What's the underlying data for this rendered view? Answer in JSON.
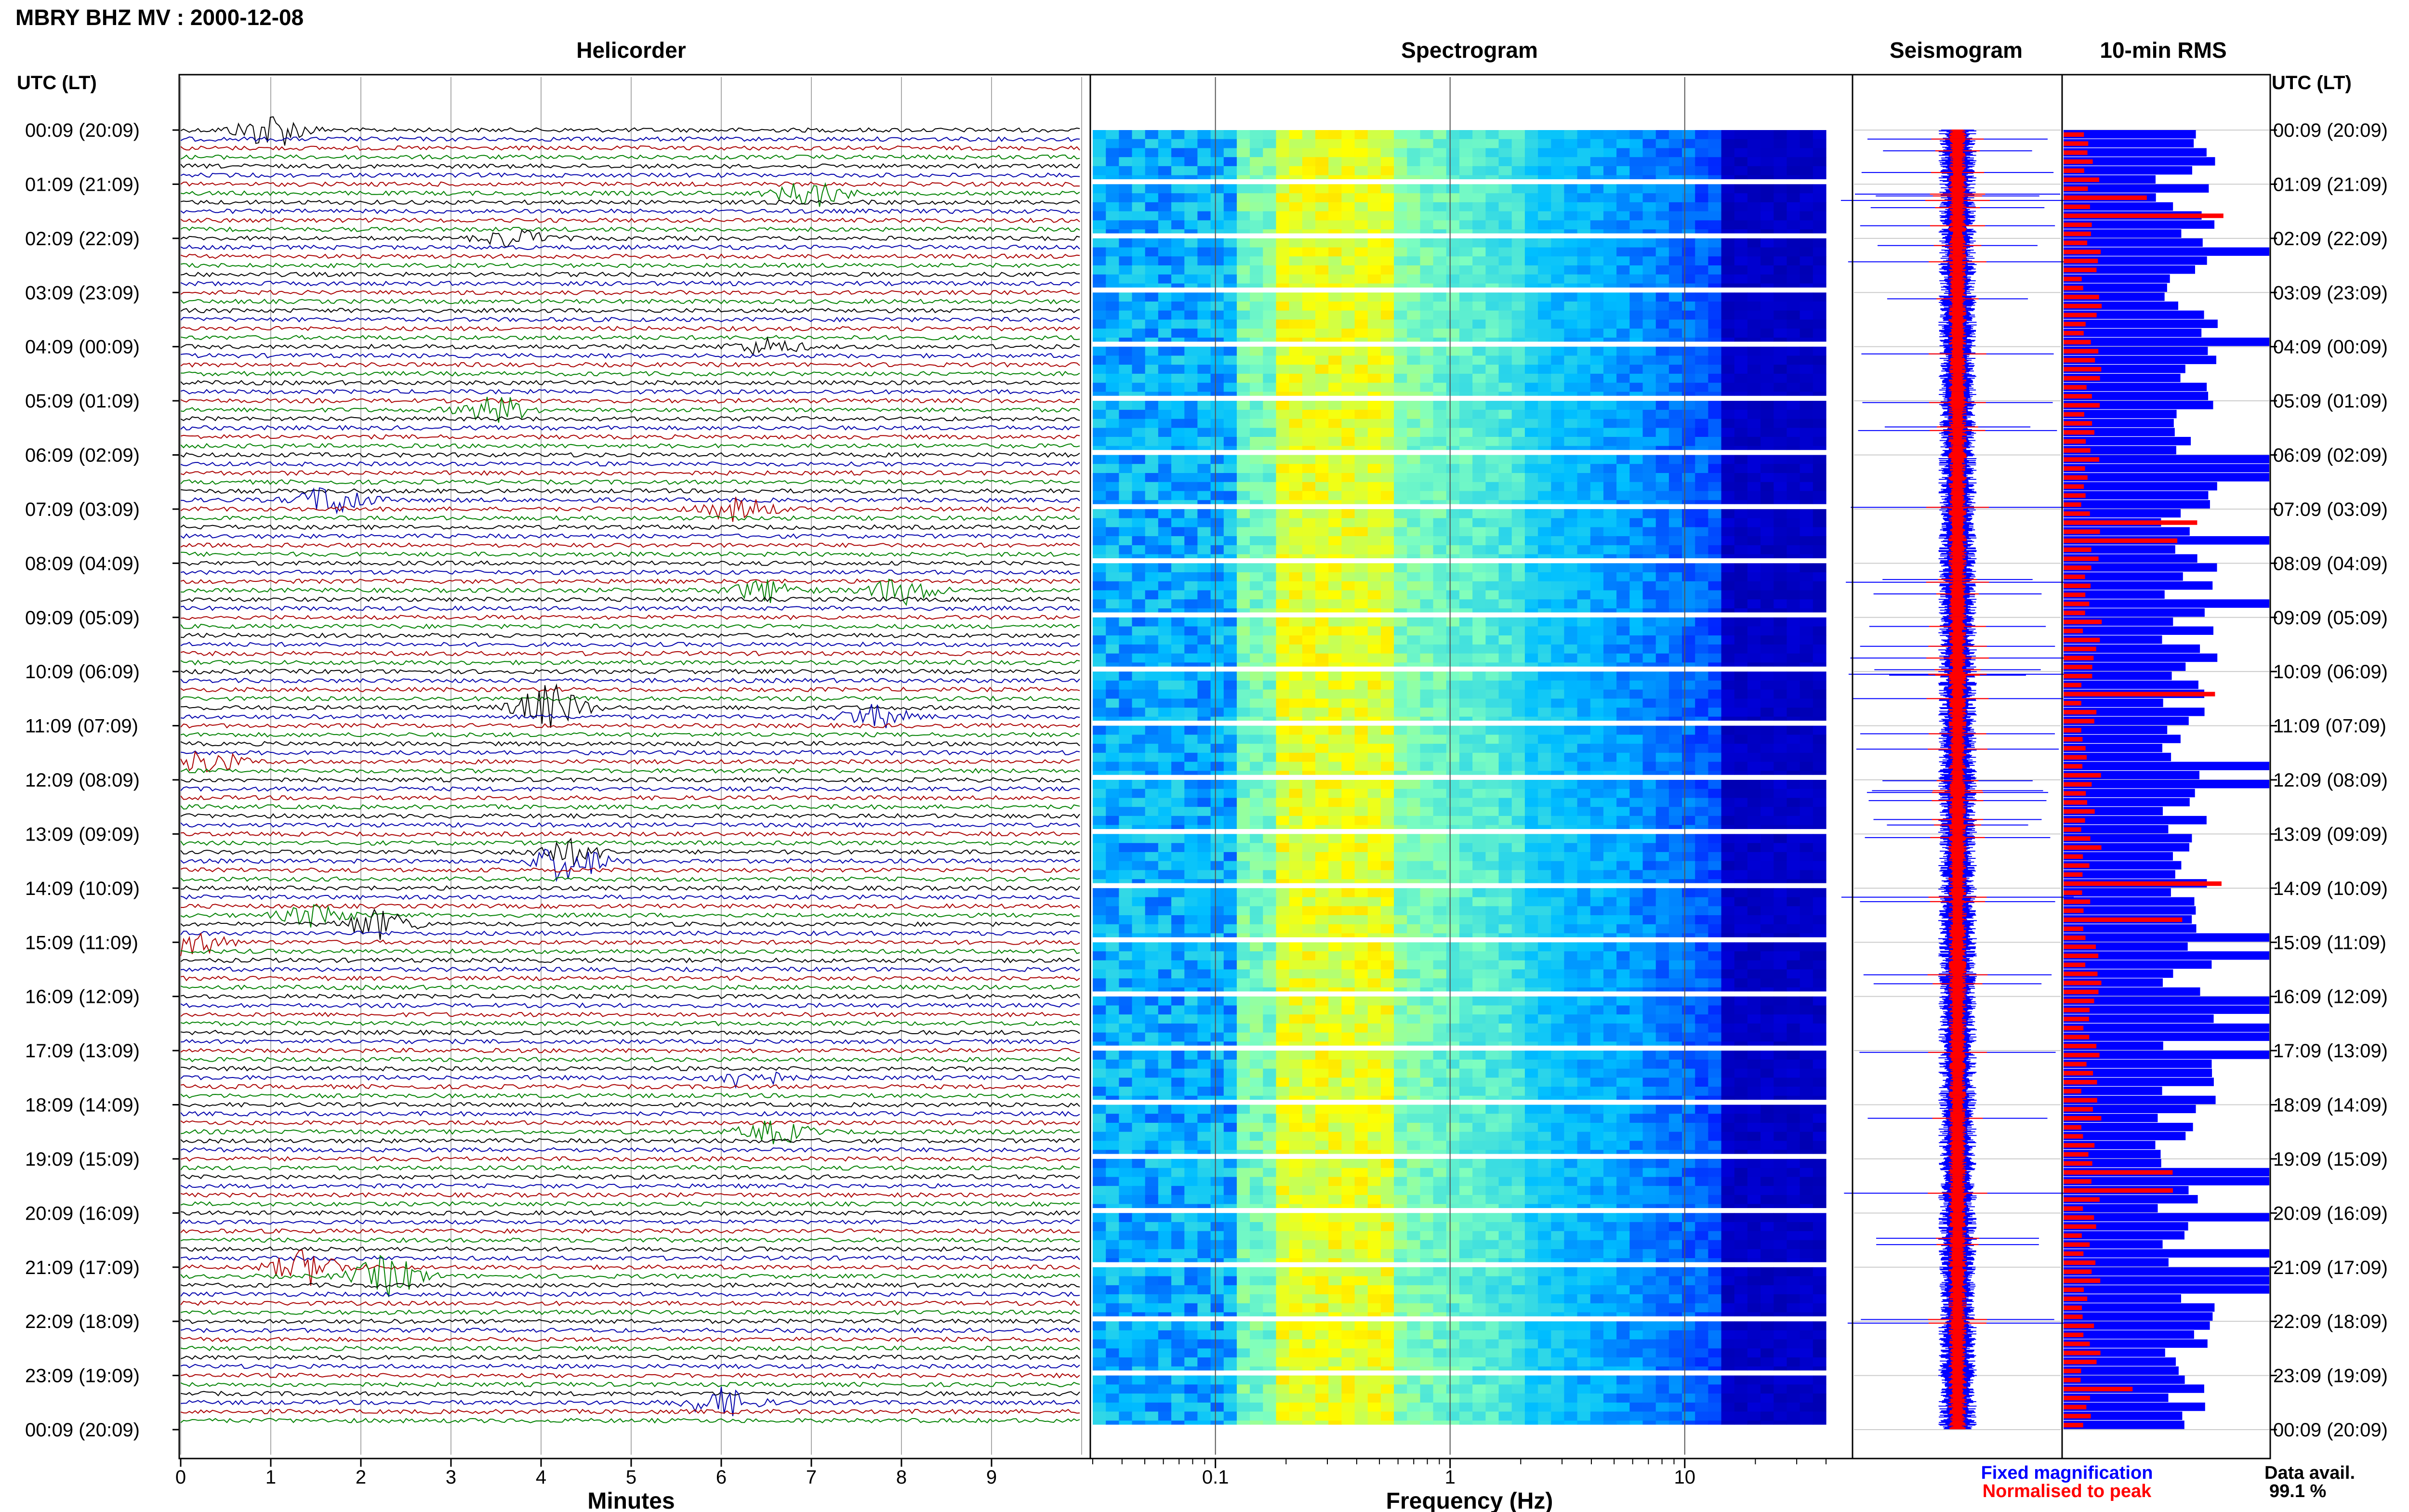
{
  "title": "MBRY BHZ MV : 2000-12-08",
  "panels": {
    "helicorder": "Helicorder",
    "spectrogram": "Spectrogram",
    "seismogram": "Seismogram",
    "rms": "10-min RMS"
  },
  "time_axis_label": "UTC (LT)",
  "time_labels": [
    "00:09 (20:09)",
    "01:09 (21:09)",
    "02:09 (22:09)",
    "03:09 (23:09)",
    "04:09 (00:09)",
    "05:09 (01:09)",
    "06:09 (02:09)",
    "07:09 (03:09)",
    "08:09 (04:09)",
    "09:09 (05:09)",
    "10:09 (06:09)",
    "11:09 (07:09)",
    "12:09 (08:09)",
    "13:09 (09:09)",
    "14:09 (10:09)",
    "15:09 (11:09)",
    "16:09 (12:09)",
    "17:09 (13:09)",
    "18:09 (14:09)",
    "19:09 (15:09)",
    "20:09 (16:09)",
    "21:09 (17:09)",
    "22:09 (18:09)",
    "23:09 (19:09)",
    "00:09 (20:09)"
  ],
  "helicorder_xlabel": "Minutes",
  "helicorder_ticks": [
    "0",
    "1",
    "2",
    "3",
    "4",
    "5",
    "6",
    "7",
    "8",
    "9"
  ],
  "spectrogram_xlabel": "Frequency (Hz)",
  "spectrogram_ticks": [
    "0.1",
    "1",
    "10"
  ],
  "legend": {
    "fixed": "Fixed magnification",
    "normalised": "Normalised to peak",
    "fixed_color": "#0000ff",
    "normalised_color": "#ff0000"
  },
  "data_avail_label": "Data avail.",
  "data_avail_value": "99.1 %",
  "colors": {
    "trace_cycle": [
      "#000000",
      "#0000aa",
      "#aa0000",
      "#008000"
    ],
    "spectrogram_palette": [
      "#00007f",
      "#0000ff",
      "#00bfff",
      "#7fffbf",
      "#ffff00",
      "#ff8000"
    ]
  },
  "chart_data": [
    {
      "type": "line",
      "name": "Helicorder",
      "xlabel": "Minutes",
      "xlim": [
        0,
        10
      ],
      "rows": 144,
      "row_minutes": 10,
      "events": [
        {
          "row": 0,
          "minute": 1.0,
          "amp": 4.0
        },
        {
          "row": 7,
          "minute": 7.0,
          "amp": 3.0
        },
        {
          "row": 12,
          "minute": 3.7,
          "amp": 2.0
        },
        {
          "row": 24,
          "minute": 6.5,
          "amp": 1.8
        },
        {
          "row": 31,
          "minute": 3.5,
          "amp": 3.0
        },
        {
          "row": 41,
          "minute": 1.7,
          "amp": 3.5
        },
        {
          "row": 42,
          "minute": 6.2,
          "amp": 2.6
        },
        {
          "row": 51,
          "minute": 6.5,
          "amp": 2.5
        },
        {
          "row": 51,
          "minute": 8.0,
          "amp": 3.0
        },
        {
          "row": 64,
          "minute": 4.1,
          "amp": 5.0
        },
        {
          "row": 65,
          "minute": 7.7,
          "amp": 2.5
        },
        {
          "row": 70,
          "minute": 0.3,
          "amp": 2.5
        },
        {
          "row": 80,
          "minute": 4.3,
          "amp": 2.7
        },
        {
          "row": 81,
          "minute": 4.3,
          "amp": 4.5
        },
        {
          "row": 87,
          "minute": 1.5,
          "amp": 2.5
        },
        {
          "row": 88,
          "minute": 2.2,
          "amp": 3.2
        },
        {
          "row": 90,
          "minute": 0.1,
          "amp": 3.0
        },
        {
          "row": 105,
          "minute": 6.3,
          "amp": 2.3
        },
        {
          "row": 111,
          "minute": 6.6,
          "amp": 2.5
        },
        {
          "row": 126,
          "minute": 1.4,
          "amp": 4.0
        },
        {
          "row": 127,
          "minute": 2.3,
          "amp": 4.5
        },
        {
          "row": 141,
          "minute": 6.0,
          "amp": 3.2
        }
      ]
    },
    {
      "type": "heatmap",
      "name": "Spectrogram",
      "xlabel": "Frequency (Hz)",
      "x_scale": "log",
      "xlim": [
        0.03,
        40
      ],
      "rows": 144,
      "peak_band_hz": [
        0.18,
        0.6
      ]
    },
    {
      "type": "line",
      "name": "Seismogram",
      "series": [
        {
          "name": "Fixed magnification",
          "color": "#0000ff"
        },
        {
          "name": "Normalised to peak",
          "color": "#ff0000"
        }
      ]
    },
    {
      "type": "bar",
      "name": "10-min RMS",
      "rows": 144,
      "series": [
        {
          "name": "Fixed magnification",
          "color": "#0000ff"
        },
        {
          "name": "Normalised to peak",
          "color": "#ff0000"
        }
      ]
    }
  ]
}
